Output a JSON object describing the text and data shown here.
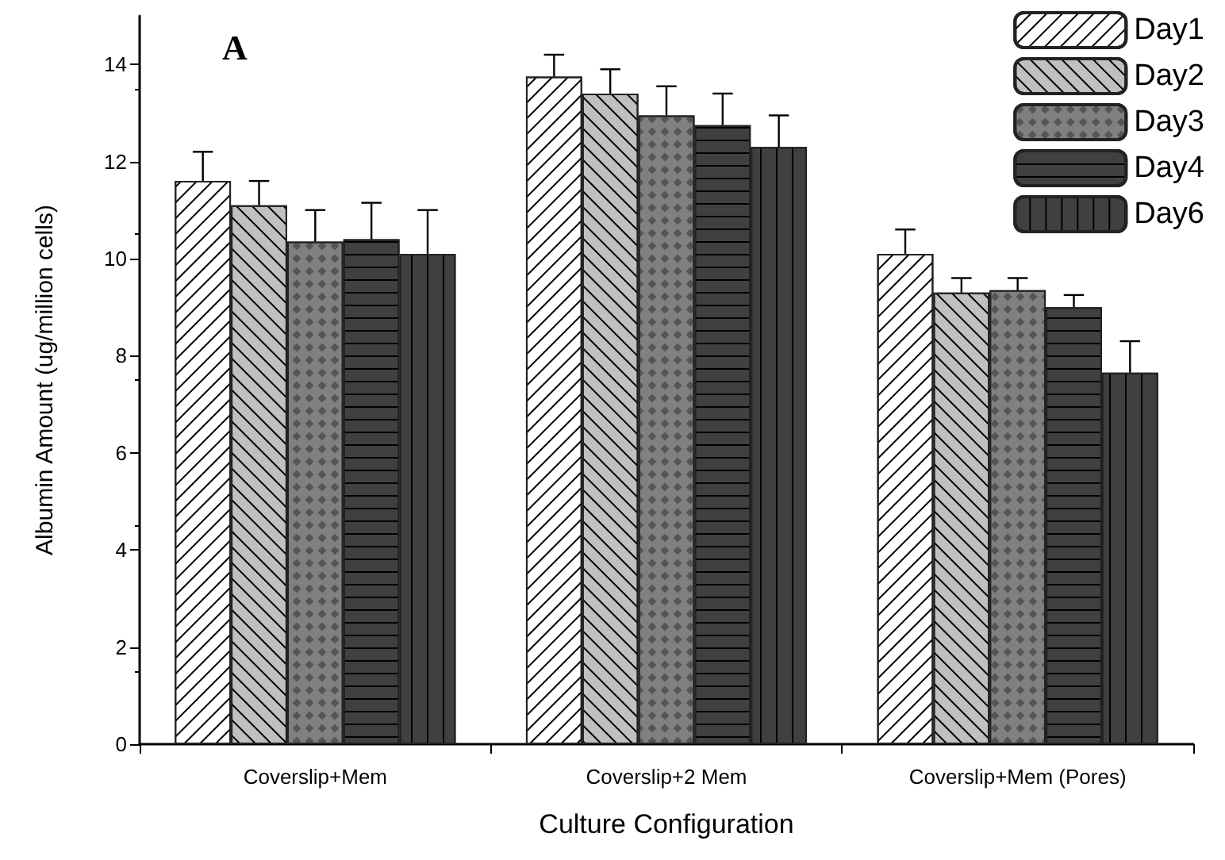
{
  "chart_data": {
    "type": "bar",
    "title": "A",
    "xlabel": "Culture Configuration",
    "ylabel": "Albumin Amount (ug/million cells)",
    "categories": [
      "Coverslip+Mem",
      "Coverslip+2 Mem",
      "Coverslip+Mem (Pores)"
    ],
    "series": [
      {
        "name": "Day1",
        "color": "#ffffff",
        "values": [
          11.6,
          13.75,
          10.1
        ],
        "errors": [
          [
            11.6,
            12.2
          ],
          [
            13.75,
            14.2
          ],
          [
            10.1,
            10.6
          ]
        ]
      },
      {
        "name": "Day2",
        "color": "#c0c0c0",
        "values": [
          11.1,
          13.4,
          9.3
        ],
        "errors": [
          [
            11.1,
            11.6
          ],
          [
            13.4,
            13.9
          ],
          [
            9.3,
            9.6
          ]
        ]
      },
      {
        "name": "Day3",
        "color": "#808080",
        "values": [
          10.35,
          12.95,
          9.35
        ],
        "errors": [
          [
            10.35,
            11.0
          ],
          [
            12.95,
            13.55
          ],
          [
            9.35,
            9.6
          ]
        ]
      },
      {
        "name": "Day4",
        "color": "#404040",
        "values": [
          10.4,
          12.75,
          9.0
        ],
        "errors": [
          [
            10.4,
            11.15
          ],
          [
            12.75,
            13.4
          ],
          [
            9.0,
            9.25
          ]
        ]
      },
      {
        "name": "Day6",
        "color": "#404040",
        "values": [
          10.1,
          12.3,
          7.65
        ],
        "errors": [
          [
            10.1,
            11.0
          ],
          [
            12.3,
            12.95
          ],
          [
            7.65,
            8.3
          ]
        ]
      }
    ],
    "ylim": [
      0,
      15
    ],
    "yticks": [
      0,
      2,
      4,
      6,
      8,
      10,
      12,
      14
    ],
    "grid": false,
    "legend": "top right"
  }
}
